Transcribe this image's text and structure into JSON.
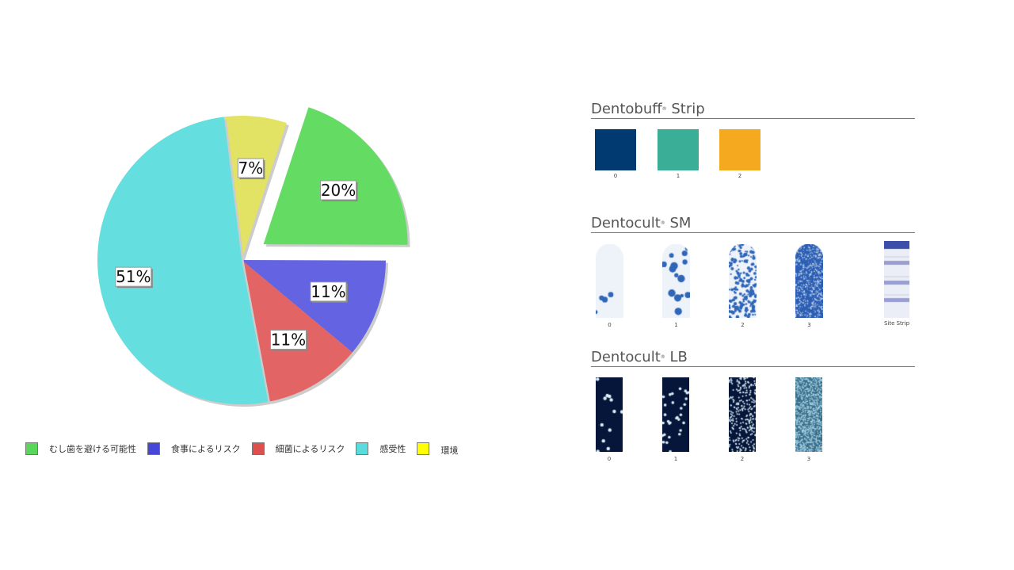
{
  "chart_data": {
    "type": "pie",
    "slices": [
      {
        "name": "環境",
        "value": 7,
        "label": "7%",
        "color": "#e2e264",
        "exploded": false
      },
      {
        "name": "むし歯を避ける可能性",
        "value": 20,
        "label": "20%",
        "color": "#64dc64",
        "exploded": true
      },
      {
        "name": "食事によるリスク",
        "value": 11,
        "label": "11%",
        "color": "#6464e2",
        "exploded": false
      },
      {
        "name": "細菌によるリスク",
        "value": 11,
        "label": "11%",
        "color": "#e26464",
        "exploded": false
      },
      {
        "name": "感受性",
        "value": 51,
        "label": "51%",
        "color": "#64dede",
        "exploded": false
      }
    ],
    "legend": [
      {
        "label": "むし歯を避ける可能性",
        "color": "#5ad65a"
      },
      {
        "label": "食事によるリスク",
        "color": "#4646d8"
      },
      {
        "label": "細菌によるリスク",
        "color": "#dc5050"
      },
      {
        "label": "感受性",
        "color": "#5adcdc"
      },
      {
        "label": "環境",
        "color": "#ffff00"
      }
    ],
    "legend_position": "bottom"
  },
  "dentobuff": {
    "title": "Dentobuff",
    "reg": "®",
    "title_suffix": " Strip",
    "items": [
      {
        "label": "0",
        "color": "#003a70"
      },
      {
        "label": "1",
        "color": "#3aae96"
      },
      {
        "label": "2",
        "color": "#f5a91e"
      }
    ]
  },
  "dentocult_sm": {
    "title": "Dentocult",
    "reg": "®",
    "title_suffix": " SM",
    "items": [
      {
        "label": "0"
      },
      {
        "label": "1"
      },
      {
        "label": "2"
      },
      {
        "label": "3"
      },
      {
        "label": "Site Strip"
      }
    ]
  },
  "dentocult_lb": {
    "title": "Dentocult",
    "reg": "®",
    "title_suffix": " LB",
    "items": [
      {
        "label": "0"
      },
      {
        "label": "1"
      },
      {
        "label": "2"
      },
      {
        "label": "3"
      }
    ]
  }
}
